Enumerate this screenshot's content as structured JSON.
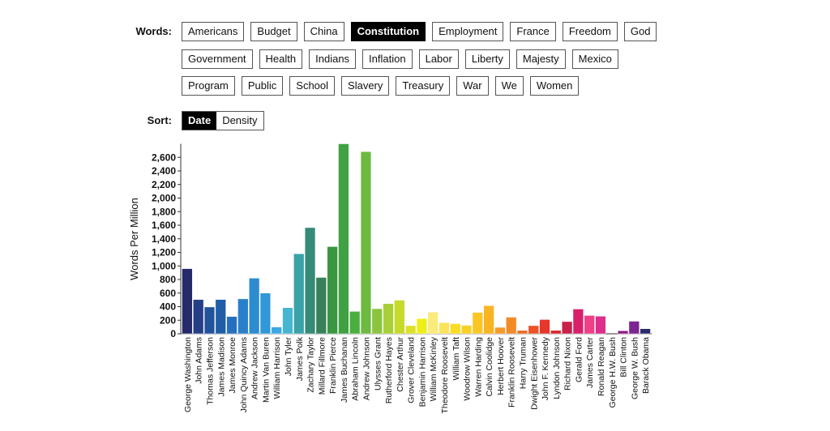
{
  "words_label": "Words:",
  "words": [
    [
      "Americans",
      "Budget",
      "China",
      "Constitution",
      "Employment",
      "France",
      "Freedom",
      "God"
    ],
    [
      "Government",
      "Health",
      "Indians",
      "Inflation",
      "Labor",
      "Liberty",
      "Majesty",
      "Mexico"
    ],
    [
      "Program",
      "Public",
      "School",
      "Slavery",
      "Treasury",
      "War",
      "We",
      "Women"
    ]
  ],
  "selected_word": "Constitution",
  "sort_label": "Sort:",
  "sort_options": [
    "Date",
    "Density"
  ],
  "selected_sort": "Date",
  "chart_data": {
    "type": "bar",
    "title": "",
    "xlabel": "",
    "ylabel": "Words Per Million",
    "ylim": [
      0,
      2800
    ],
    "yticks": [
      0,
      200,
      400,
      600,
      800,
      1000,
      1200,
      1400,
      1600,
      1800,
      2000,
      2200,
      2400,
      2600
    ],
    "ytick_labels": [
      "0",
      "200",
      "400",
      "600",
      "800",
      "1,000",
      "1,200",
      "1,400",
      "1,600",
      "1,800",
      "2,000",
      "2,200",
      "2,400",
      "2,600"
    ],
    "categories": [
      "George Washington",
      "John Adams",
      "Thomas Jefferson",
      "James Madison",
      "James Monroe",
      "John Quincy Adams",
      "Andrew Jackson",
      "Martin Van Buren",
      "William Harrison",
      "John Tyler",
      "James Polk",
      "Zachary Taylor",
      "Millard Fillmore",
      "Franklin Pierce",
      "James Buchanan",
      "Abraham Lincoln",
      "Andrew Johnson",
      "Ulysses Grant",
      "Rutherford Hayes",
      "Chester Arthur",
      "Grover Cleveland",
      "Benjamin Harrison",
      "William McKinley",
      "Theodore Roosevelt",
      "William Taft",
      "Woodrow Wilson",
      "Warren Harding",
      "Calvin Coolidge",
      "Herbert Hoover",
      "Franklin Roosevelt",
      "Harry Truman",
      "Dwight Eisenhower",
      "John F. Kennedy",
      "Lyndon Johnson",
      "Richard Nixon",
      "Gerald Ford",
      "James Carter",
      "Ronald Reagan",
      "George H.W. Bush",
      "Bill Clinton",
      "George W. Bush",
      "Barack Obama"
    ],
    "values": [
      960,
      505,
      395,
      505,
      255,
      515,
      820,
      600,
      100,
      385,
      1180,
      1565,
      830,
      1285,
      2800,
      330,
      2685,
      370,
      445,
      495,
      120,
      225,
      320,
      165,
      150,
      125,
      315,
      415,
      95,
      245,
      50,
      120,
      210,
      50,
      180,
      365,
      270,
      260,
      0,
      45,
      185,
      75
    ],
    "colors": [
      "#262a6b",
      "#243f86",
      "#22529a",
      "#1f5ea6",
      "#2470bf",
      "#2a7fcb",
      "#2c8ccf",
      "#3098d6",
      "#3aa8e6",
      "#45b5d2",
      "#3aa3a8",
      "#358a78",
      "#36805a",
      "#3a9640",
      "#3fa142",
      "#4aaf3e",
      "#6cbb40",
      "#8cc43f",
      "#a9cf38",
      "#c6da2b",
      "#dde025",
      "#eeee18",
      "#fbea7c",
      "#fbe35a",
      "#fbdc24",
      "#f9d026",
      "#f9c626",
      "#f8b422",
      "#f59a2a",
      "#f28a28",
      "#f06a25",
      "#ee5223",
      "#e8362a",
      "#d8262b",
      "#c8214a",
      "#d81f6a",
      "#ef3f87",
      "#de2d8a",
      "#c0288f",
      "#8d1b86",
      "#7b2590",
      "#2a2c6b"
    ],
    "grid": false,
    "legend": "none"
  }
}
